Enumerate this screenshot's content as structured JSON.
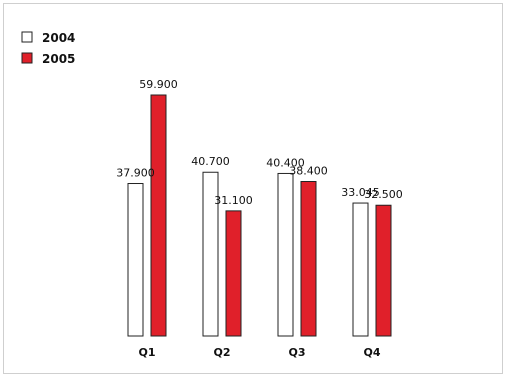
{
  "chart_data": {
    "type": "bar",
    "title": "",
    "xlabel": "",
    "ylabel": "",
    "categories": [
      "Q1",
      "Q2",
      "Q3",
      "Q4"
    ],
    "value_labels": [
      [
        "37.900",
        "59.900"
      ],
      [
        "40.700",
        "31.100"
      ],
      [
        "40.400",
        "38.400"
      ],
      [
        "33.045",
        "32.500"
      ]
    ],
    "series": [
      {
        "name": "2004",
        "color": "#ffffff",
        "values": [
          37.9,
          40.7,
          40.4,
          33.045
        ]
      },
      {
        "name": "2005",
        "color": "#e0202a",
        "values": [
          59.9,
          31.1,
          38.4,
          32.5
        ]
      }
    ],
    "ylim": [
      0,
      59.9
    ],
    "grid": false,
    "legend": "top-left"
  }
}
